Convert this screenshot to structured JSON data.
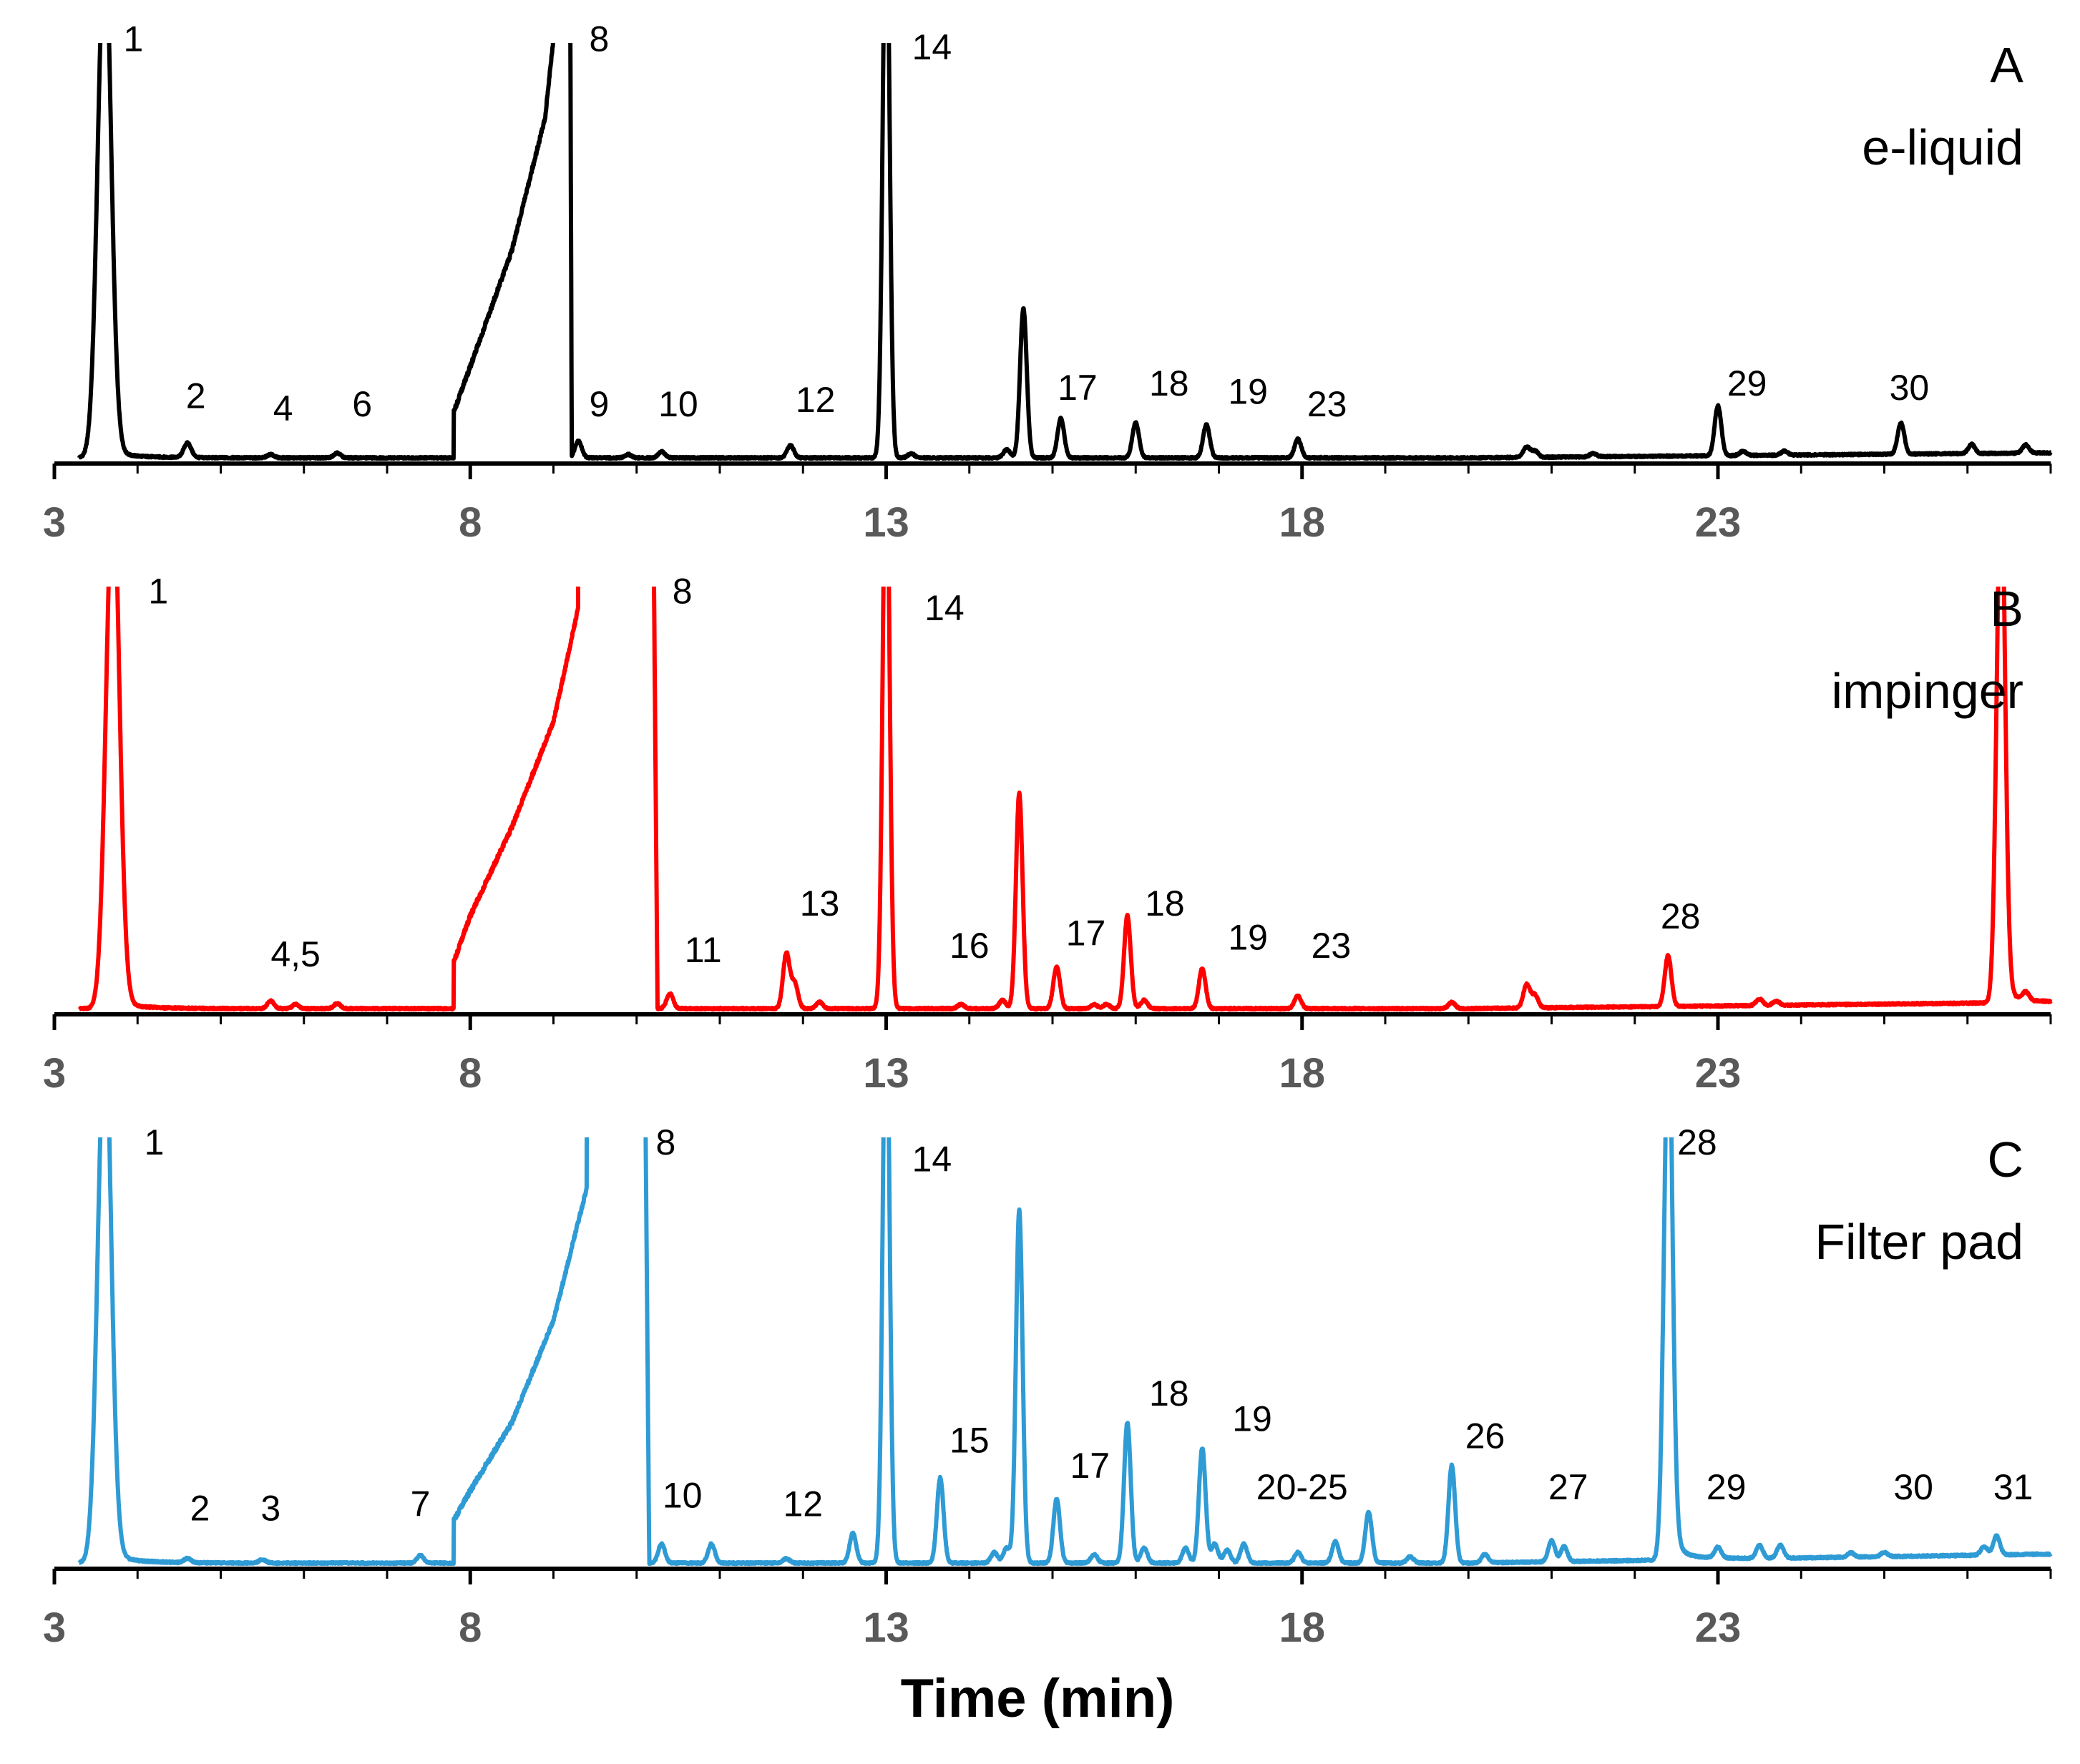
{
  "chart_data": {
    "type": "line",
    "title": "",
    "xlabel": "Time (min)",
    "ylabel": "",
    "xlim": [
      3,
      27
    ],
    "xticks": [
      3,
      8,
      13,
      18,
      23
    ],
    "tick_labels": [
      "3",
      "8",
      "13",
      "18",
      "23"
    ],
    "grid": false,
    "legend": "none",
    "panels": [
      {
        "id": "A",
        "letter": "A",
        "subtitle": "e-liquid",
        "color": "#000000",
        "tail": 0.022,
        "drift": 0.02,
        "peaks": [
          {
            "t": 3.6,
            "h": 1.2,
            "w": 0.08,
            "label": "1",
            "lt": 3.95,
            "lh": 0.98
          },
          {
            "t": 4.6,
            "h": 0.035,
            "w": 0.045,
            "label": "2",
            "lt": 4.7,
            "lh": 0.12
          },
          {
            "t": 5.6,
            "h": 0.008,
            "w": 0.04,
            "label": "4",
            "lt": 5.75,
            "lh": 0.09
          },
          {
            "t": 6.4,
            "h": 0.012,
            "w": 0.04,
            "label": "6",
            "lt": 6.7,
            "lh": 0.1
          },
          {
            "t": 9.3,
            "h": 0.04,
            "w": 0.04,
            "label": "9",
            "lt": 9.55,
            "lh": 0.1
          },
          {
            "t": 9.9,
            "h": 0.008,
            "w": 0.04
          },
          {
            "t": 10.3,
            "h": 0.015,
            "w": 0.04,
            "label": "10",
            "lt": 10.5,
            "lh": 0.1
          },
          {
            "t": 11.85,
            "h": 0.03,
            "w": 0.04,
            "label": "12",
            "lt": 12.15,
            "lh": 0.11
          },
          {
            "t": 13.3,
            "h": 0.01,
            "w": 0.04
          },
          {
            "t": 14.45,
            "h": 0.02,
            "w": 0.04
          },
          {
            "t": 14.65,
            "h": 0.36,
            "w": 0.04
          },
          {
            "t": 15.1,
            "h": 0.095,
            "w": 0.04,
            "label": "17",
            "lt": 15.3,
            "lh": 0.14
          },
          {
            "t": 16.0,
            "h": 0.085,
            "w": 0.04,
            "label": "18",
            "lt": 16.4,
            "lh": 0.15
          },
          {
            "t": 16.85,
            "h": 0.08,
            "w": 0.04,
            "label": "19",
            "lt": 17.35,
            "lh": 0.13
          },
          {
            "t": 17.95,
            "h": 0.045,
            "w": 0.04,
            "label": "23",
            "lt": 18.3,
            "lh": 0.1
          },
          {
            "t": 20.7,
            "h": 0.025,
            "w": 0.04
          },
          {
            "t": 20.8,
            "h": 0.015,
            "w": 0.04
          },
          {
            "t": 21.5,
            "h": 0.008,
            "w": 0.04
          },
          {
            "t": 23.0,
            "h": 0.12,
            "w": 0.04,
            "label": "29",
            "lt": 23.35,
            "lh": 0.15
          },
          {
            "t": 23.3,
            "h": 0.01,
            "w": 0.04
          },
          {
            "t": 23.8,
            "h": 0.01,
            "w": 0.04
          },
          {
            "t": 25.2,
            "h": 0.075,
            "w": 0.04,
            "label": "30",
            "lt": 25.3,
            "lh": 0.14
          },
          {
            "t": 26.05,
            "h": 0.022,
            "w": 0.04
          },
          {
            "t": 26.7,
            "h": 0.02,
            "w": 0.04
          }
        ],
        "solvent": [
          {
            "t": 7.8,
            "h": 0.11
          },
          {
            "t": 8.0,
            "h": 0.22
          },
          {
            "t": 8.5,
            "h": 0.5
          },
          {
            "t": 8.9,
            "h": 0.82
          },
          {
            "t": 9.1,
            "h": 1.2
          },
          {
            "t": 9.2,
            "h": 1.2
          },
          {
            "t": 9.22,
            "h": 0.04
          }
        ],
        "off_labels": [
          {
            "label": "8",
            "lt": 9.55,
            "lh": 0.98
          },
          {
            "label": "14",
            "lt": 13.55,
            "lh": 0.96
          }
        ],
        "truncated": [
          {
            "t": 13.0,
            "w": 0.04
          }
        ]
      },
      {
        "id": "B",
        "letter": "B",
        "subtitle": "impinger",
        "color": "#ff0000",
        "tail": 0.02,
        "drift": 0.025,
        "peaks": [
          {
            "t": 3.7,
            "h": 1.2,
            "w": 0.08,
            "label": "1",
            "lt": 4.25,
            "lh": 0.96
          },
          {
            "t": 5.6,
            "h": 0.018,
            "w": 0.04,
            "label": "4,5",
            "lt": 5.9,
            "lh": 0.1
          },
          {
            "t": 5.9,
            "h": 0.01,
            "w": 0.04
          },
          {
            "t": 6.4,
            "h": 0.012,
            "w": 0.04
          },
          {
            "t": 10.4,
            "h": 0.035,
            "w": 0.04,
            "label": "11",
            "lt": 10.8,
            "lh": 0.11
          },
          {
            "t": 11.8,
            "h": 0.13,
            "w": 0.04
          },
          {
            "t": 11.9,
            "h": 0.06,
            "w": 0.04,
            "label": "13",
            "lt": 12.2,
            "lh": 0.22
          },
          {
            "t": 12.2,
            "h": 0.015,
            "w": 0.04
          },
          {
            "t": 13.9,
            "h": 0.01,
            "w": 0.04,
            "label": "16",
            "lt": 14.0,
            "lh": 0.12
          },
          {
            "t": 14.4,
            "h": 0.02,
            "w": 0.04
          },
          {
            "t": 14.6,
            "h": 0.51,
            "w": 0.04
          },
          {
            "t": 15.05,
            "h": 0.1,
            "w": 0.04,
            "label": "17",
            "lt": 15.4,
            "lh": 0.15
          },
          {
            "t": 15.5,
            "h": 0.01,
            "w": 0.04
          },
          {
            "t": 15.65,
            "h": 0.01,
            "w": 0.04
          },
          {
            "t": 15.9,
            "h": 0.22,
            "w": 0.04,
            "label": "18",
            "lt": 16.35,
            "lh": 0.22
          },
          {
            "t": 16.1,
            "h": 0.02,
            "w": 0.04
          },
          {
            "t": 16.8,
            "h": 0.095,
            "w": 0.04,
            "label": "19",
            "lt": 17.35,
            "lh": 0.14
          },
          {
            "t": 17.95,
            "h": 0.03,
            "w": 0.04,
            "label": "23",
            "lt": 18.35,
            "lh": 0.12
          },
          {
            "t": 19.8,
            "h": 0.015,
            "w": 0.04
          },
          {
            "t": 20.7,
            "h": 0.055,
            "w": 0.04
          },
          {
            "t": 20.8,
            "h": 0.03,
            "w": 0.04
          },
          {
            "t": 22.4,
            "h": 0.12,
            "w": 0.04,
            "label": "28",
            "lt": 22.55,
            "lh": 0.19
          },
          {
            "t": 23.5,
            "h": 0.015,
            "w": 0.04
          },
          {
            "t": 23.7,
            "h": 0.01,
            "w": 0.04
          },
          {
            "t": 26.4,
            "h": 1.2,
            "w": 0.05
          },
          {
            "t": 26.7,
            "h": 0.02,
            "w": 0.04
          }
        ],
        "solvent": [
          {
            "t": 7.8,
            "h": 0.11
          },
          {
            "t": 8.0,
            "h": 0.22
          },
          {
            "t": 8.5,
            "h": 0.43
          },
          {
            "t": 9.0,
            "h": 0.68
          },
          {
            "t": 9.3,
            "h": 0.95
          },
          {
            "t": 9.3,
            "h": 1.2
          },
          {
            "t": 10.2,
            "h": 1.2
          },
          {
            "t": 10.25,
            "h": 0.04
          }
        ],
        "off_labels": [
          {
            "label": "8",
            "lt": 10.55,
            "lh": 0.96
          },
          {
            "label": "14",
            "lt": 13.7,
            "lh": 0.92
          }
        ],
        "truncated": [
          {
            "t": 13.0,
            "w": 0.04
          }
        ]
      },
      {
        "id": "C",
        "letter": "C",
        "subtitle": "Filter pad",
        "color": "#2f9bd5",
        "tail": 0.03,
        "drift": 0.035,
        "peaks": [
          {
            "t": 3.6,
            "h": 1.2,
            "w": 0.08,
            "label": "1",
            "lt": 4.2,
            "lh": 0.96
          },
          {
            "t": 4.6,
            "h": 0.01,
            "w": 0.04,
            "label": "2",
            "lt": 4.75,
            "lh": 0.1
          },
          {
            "t": 5.5,
            "h": 0.008,
            "w": 0.04,
            "label": "3",
            "lt": 5.6,
            "lh": 0.1
          },
          {
            "t": 7.4,
            "h": 0.018,
            "w": 0.04,
            "label": "7",
            "lt": 7.4,
            "lh": 0.11
          },
          {
            "t": 10.3,
            "h": 0.045,
            "w": 0.04,
            "label": "10",
            "lt": 10.55,
            "lh": 0.13
          },
          {
            "t": 10.9,
            "h": 0.045,
            "w": 0.04
          },
          {
            "t": 11.8,
            "h": 0.01,
            "w": 0.04,
            "label": "12",
            "lt": 12.0,
            "lh": 0.11
          },
          {
            "t": 12.6,
            "h": 0.07,
            "w": 0.04
          },
          {
            "t": 13.65,
            "h": 0.2,
            "w": 0.04,
            "label": "15",
            "lt": 14.0,
            "lh": 0.26
          },
          {
            "t": 14.3,
            "h": 0.025,
            "w": 0.04
          },
          {
            "t": 14.45,
            "h": 0.035,
            "w": 0.04
          },
          {
            "t": 14.6,
            "h": 0.83,
            "w": 0.04
          },
          {
            "t": 15.05,
            "h": 0.15,
            "w": 0.04,
            "label": "17",
            "lt": 15.45,
            "lh": 0.2
          },
          {
            "t": 15.5,
            "h": 0.02,
            "w": 0.04
          },
          {
            "t": 15.9,
            "h": 0.33,
            "w": 0.04,
            "label": "18",
            "lt": 16.4,
            "lh": 0.37
          },
          {
            "t": 16.1,
            "h": 0.035,
            "w": 0.04
          },
          {
            "t": 16.6,
            "h": 0.035,
            "w": 0.04
          },
          {
            "t": 16.8,
            "h": 0.27,
            "w": 0.04,
            "label": "19",
            "lt": 17.4,
            "lh": 0.31
          },
          {
            "t": 16.95,
            "h": 0.045,
            "w": 0.04
          },
          {
            "t": 17.1,
            "h": 0.03,
            "w": 0.04
          },
          {
            "t": 17.3,
            "h": 0.045,
            "w": 0.04
          },
          {
            "t": 17.95,
            "h": 0.025,
            "w": 0.04,
            "label": "20-25",
            "lt": 18.0,
            "lh": 0.15
          },
          {
            "t": 18.4,
            "h": 0.05,
            "w": 0.04
          },
          {
            "t": 18.8,
            "h": 0.12,
            "w": 0.04
          },
          {
            "t": 19.3,
            "h": 0.015,
            "w": 0.04
          },
          {
            "t": 19.8,
            "h": 0.23,
            "w": 0.04,
            "label": "26",
            "lt": 20.2,
            "lh": 0.27
          },
          {
            "t": 20.2,
            "h": 0.02,
            "w": 0.04
          },
          {
            "t": 21.0,
            "h": 0.05,
            "w": 0.04
          },
          {
            "t": 21.15,
            "h": 0.035,
            "w": 0.04,
            "label": "27",
            "lt": 21.2,
            "lh": 0.15
          },
          {
            "t": 22.4,
            "h": 1.2,
            "w": 0.05
          },
          {
            "t": 23.0,
            "h": 0.025,
            "w": 0.04,
            "label": "29",
            "lt": 23.1,
            "lh": 0.15
          },
          {
            "t": 23.5,
            "h": 0.03,
            "w": 0.04
          },
          {
            "t": 23.75,
            "h": 0.03,
            "w": 0.04
          },
          {
            "t": 24.6,
            "h": 0.01,
            "w": 0.04
          },
          {
            "t": 25.0,
            "h": 0.01,
            "w": 0.04,
            "label": "30",
            "lt": 25.35,
            "lh": 0.15
          },
          {
            "t": 26.2,
            "h": 0.02,
            "w": 0.04
          },
          {
            "t": 26.35,
            "h": 0.045,
            "w": 0.04,
            "label": "31",
            "lt": 26.55,
            "lh": 0.15
          }
        ],
        "solvent": [
          {
            "t": 7.8,
            "h": 0.1
          },
          {
            "t": 8.0,
            "h": 0.17
          },
          {
            "t": 8.5,
            "h": 0.33
          },
          {
            "t": 9.0,
            "h": 0.57
          },
          {
            "t": 9.4,
            "h": 0.88
          },
          {
            "t": 9.4,
            "h": 1.2
          },
          {
            "t": 10.1,
            "h": 1.2
          },
          {
            "t": 10.15,
            "h": 0.05
          }
        ],
        "off_labels": [
          {
            "label": "8",
            "lt": 10.35,
            "lh": 0.96
          },
          {
            "label": "14",
            "lt": 13.55,
            "lh": 0.92
          },
          {
            "label": "28",
            "lt": 22.75,
            "lh": 0.96
          }
        ],
        "truncated": [
          {
            "t": 13.0,
            "w": 0.04
          }
        ]
      }
    ]
  }
}
